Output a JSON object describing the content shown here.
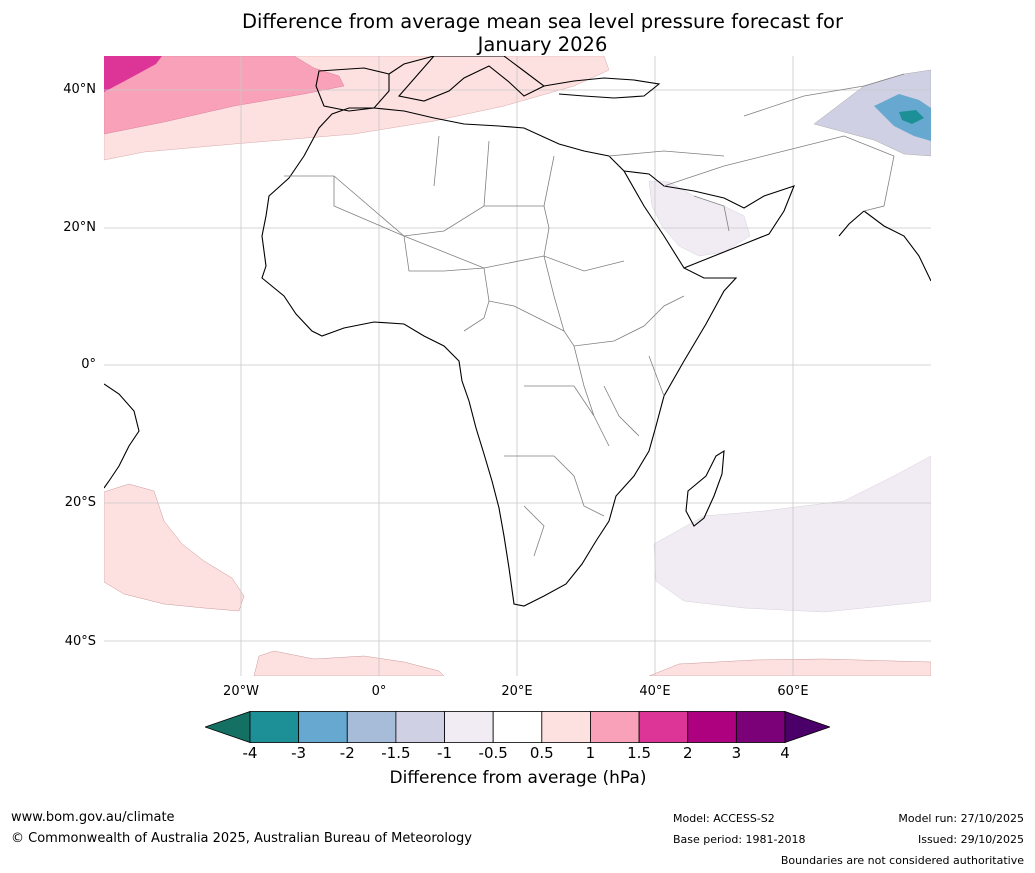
{
  "title_line1": "Difference from average mean sea level pressure forecast for",
  "title_line2": "January 2026",
  "lat_labels": [
    "40°N",
    "20°N",
    "0°",
    "20°S",
    "40°S"
  ],
  "lon_labels": [
    "20°W",
    "0°",
    "20°E",
    "40°E",
    "60°E"
  ],
  "colorbar": {
    "ticks": [
      "-4",
      "-3",
      "-2",
      "-1.5",
      "-1",
      "-0.5",
      "0.5",
      "1",
      "1.5",
      "2",
      "3",
      "4"
    ],
    "colors": [
      "#137063",
      "#1d8f96",
      "#67a8d0",
      "#a7bcd8",
      "#cfd0e4",
      "#f1ecf3",
      "#ffffff",
      "#fde0e0",
      "#f9a1b9",
      "#dd3597",
      "#ad0180",
      "#7a0177",
      "#4a0068"
    ],
    "label": "Difference from average (hPa)"
  },
  "footer": {
    "url": "www.bom.gov.au/climate",
    "copyright": "© Commonwealth of Australia 2025, Australian Bureau of Meteorology",
    "model": "Model: ACCESS-S2",
    "base_period": "Base period: 1981-2018",
    "model_run": "Model run: 27/10/2025",
    "issued": "Issued: 29/10/2025",
    "disclaimer": "Boundaries are not considered authoritative"
  }
}
